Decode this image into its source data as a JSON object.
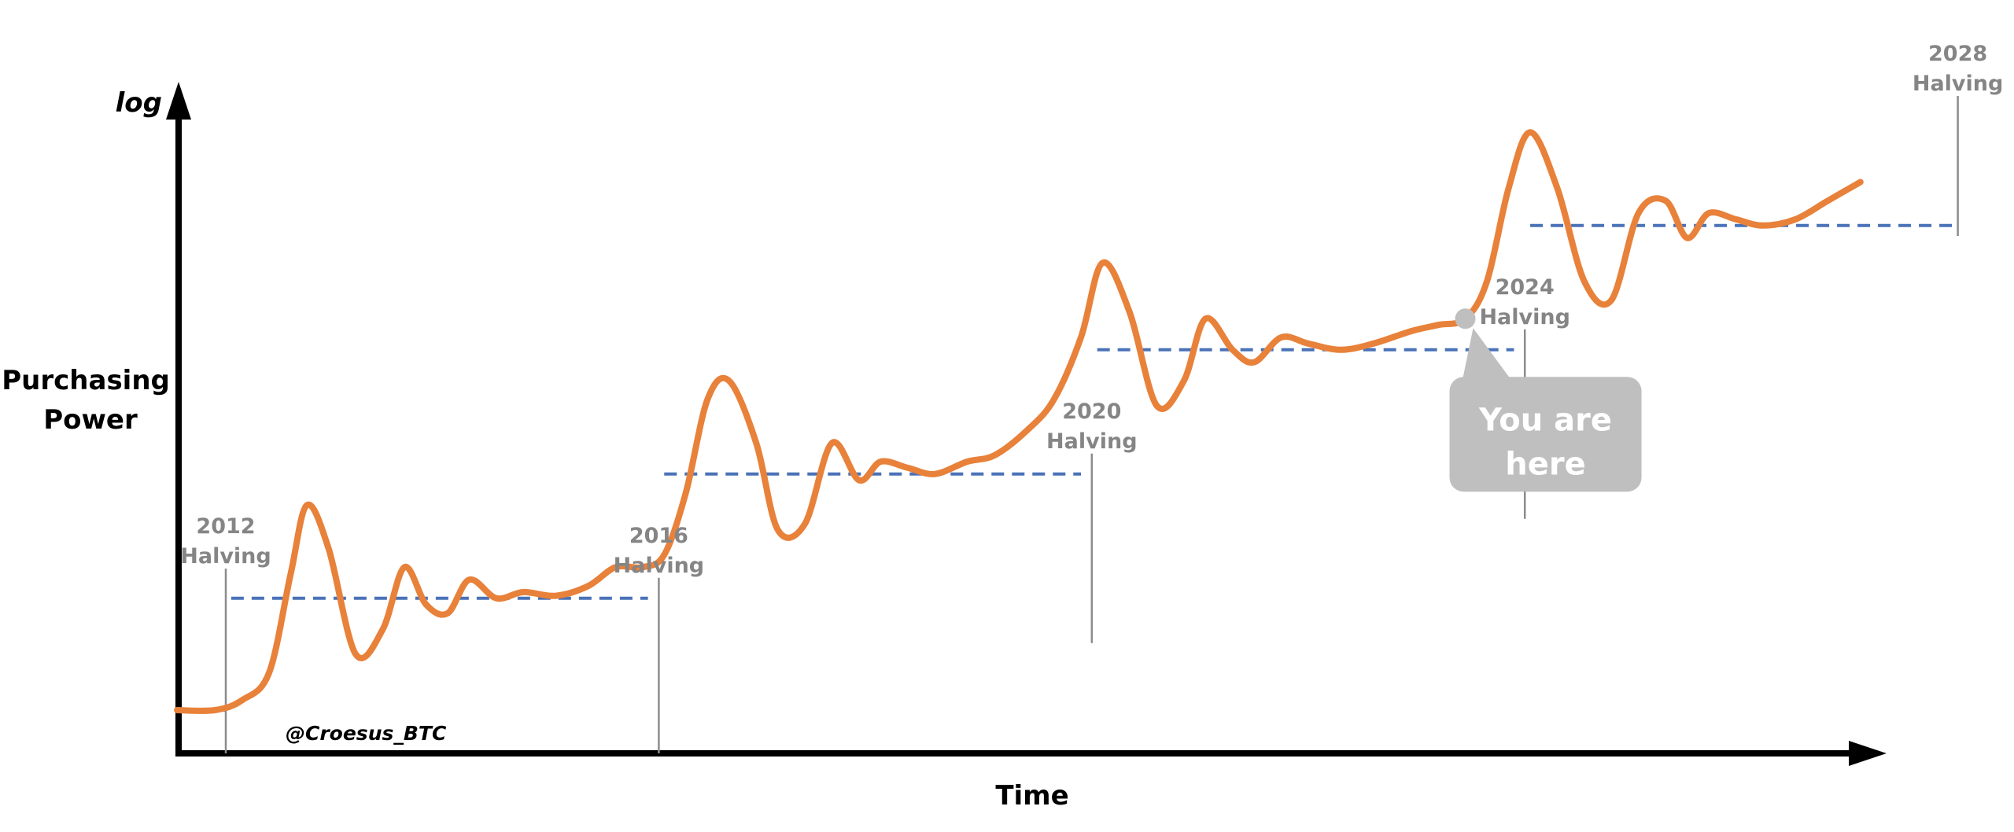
{
  "chart_data": {
    "type": "line",
    "title": "",
    "xlabel": "Time",
    "ylabel": "Purchasing Power",
    "y_scale": "log",
    "y_scale_label": "log",
    "grid": false,
    "legend": "none",
    "watermark": "@Croesus_BTC",
    "colors": {
      "series": "#e8813a",
      "baseline": "#4a72b8",
      "halving_line": "#8c8c8c",
      "halving_label": "#858585",
      "callout": "#bfbfbf",
      "axis": "#000000"
    },
    "halvings": [
      {
        "year": "2012",
        "label_line1": "2012",
        "label_line2": "Halving",
        "t": 2012,
        "baseline_level": 0.0
      },
      {
        "year": "2016",
        "label_line1": "2016",
        "label_line2": "Halving",
        "t": 2016,
        "baseline_level": 1.0
      },
      {
        "year": "2020",
        "label_line1": "2020",
        "label_line2": "Halving",
        "t": 2020,
        "baseline_level": 1.0
      },
      {
        "year": "2024",
        "label_line1": "2024",
        "label_line2": "Halving",
        "t": 2024,
        "baseline_level": 1.0
      },
      {
        "year": "2028",
        "label_line1": "2028",
        "label_line2": "Halving",
        "t": 2028,
        "baseline_level": 1.0
      }
    ],
    "baselines": [
      {
        "from": 2011.55,
        "to": 2012.0,
        "level": 0.1
      },
      {
        "from": 2012.05,
        "to": 2015.9,
        "level": 1.0
      },
      {
        "from": 2016.05,
        "to": 2019.9,
        "level": 2.0
      },
      {
        "from": 2020.05,
        "to": 2023.9,
        "level": 3.0
      },
      {
        "from": 2024.05,
        "to": 2027.95,
        "level": 4.0
      }
    ],
    "series": [
      {
        "name": "",
        "points": [
          [
            2011.55,
            0.1
          ],
          [
            2011.9,
            0.1
          ],
          [
            2012.15,
            0.18
          ],
          [
            2012.4,
            0.4
          ],
          [
            2012.6,
            1.2
          ],
          [
            2012.75,
            1.75
          ],
          [
            2012.95,
            1.4
          ],
          [
            2013.2,
            0.55
          ],
          [
            2013.45,
            0.75
          ],
          [
            2013.65,
            1.25
          ],
          [
            2013.85,
            0.95
          ],
          [
            2014.05,
            0.88
          ],
          [
            2014.25,
            1.15
          ],
          [
            2014.5,
            1.0
          ],
          [
            2014.75,
            1.05
          ],
          [
            2015.05,
            1.02
          ],
          [
            2015.35,
            1.1
          ],
          [
            2015.6,
            1.25
          ],
          [
            2015.85,
            1.25
          ],
          [
            2016.05,
            1.35
          ],
          [
            2016.25,
            1.85
          ],
          [
            2016.45,
            2.6
          ],
          [
            2016.65,
            2.75
          ],
          [
            2016.9,
            2.25
          ],
          [
            2017.1,
            1.55
          ],
          [
            2017.35,
            1.6
          ],
          [
            2017.6,
            2.25
          ],
          [
            2017.85,
            1.95
          ],
          [
            2018.05,
            2.1
          ],
          [
            2018.3,
            2.05
          ],
          [
            2018.55,
            2.0
          ],
          [
            2018.85,
            2.1
          ],
          [
            2019.1,
            2.15
          ],
          [
            2019.4,
            2.35
          ],
          [
            2019.65,
            2.6
          ],
          [
            2019.9,
            3.1
          ],
          [
            2020.1,
            3.7
          ],
          [
            2020.35,
            3.3
          ],
          [
            2020.6,
            2.55
          ],
          [
            2020.85,
            2.75
          ],
          [
            2021.05,
            3.25
          ],
          [
            2021.3,
            3.0
          ],
          [
            2021.5,
            2.9
          ],
          [
            2021.75,
            3.1
          ],
          [
            2022.0,
            3.05
          ],
          [
            2022.3,
            3.0
          ],
          [
            2022.6,
            3.05
          ],
          [
            2022.95,
            3.15
          ],
          [
            2023.2,
            3.2
          ],
          [
            2023.45,
            3.25
          ],
          [
            2023.65,
            3.55
          ],
          [
            2023.85,
            4.3
          ],
          [
            2024.05,
            4.75
          ],
          [
            2024.3,
            4.3
          ],
          [
            2024.55,
            3.55
          ],
          [
            2024.8,
            3.4
          ],
          [
            2025.05,
            4.1
          ],
          [
            2025.3,
            4.2
          ],
          [
            2025.5,
            3.9
          ],
          [
            2025.7,
            4.1
          ],
          [
            2025.95,
            4.05
          ],
          [
            2026.2,
            4.0
          ],
          [
            2026.5,
            4.05
          ],
          [
            2026.8,
            4.2
          ],
          [
            2027.1,
            4.35
          ]
        ]
      }
    ],
    "you_are_here": {
      "t": 2023.45,
      "value": 3.25,
      "line1": "You are",
      "line2": "here"
    }
  }
}
